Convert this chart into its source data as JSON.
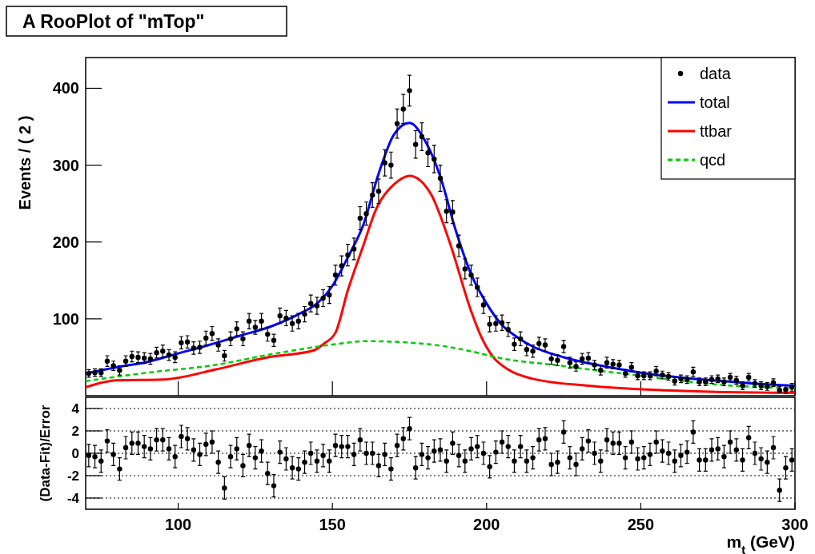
{
  "chart_data": [
    {
      "type": "scatter",
      "title": "A RooPlot of \"mTop\"",
      "ylabel": "Events / ( 2 )",
      "xlim": [
        70,
        300
      ],
      "xticks": [
        100,
        150,
        200,
        250,
        300
      ],
      "ylim": [
        0,
        440
      ],
      "yticks": [
        100,
        200,
        300,
        400
      ],
      "tick_labels": "y",
      "legend": "top right",
      "x": [
        71,
        73,
        75,
        77,
        79,
        81,
        83,
        85,
        87,
        89,
        91,
        93,
        95,
        97,
        99,
        101,
        103,
        105,
        107,
        109,
        111,
        113,
        115,
        117,
        119,
        121,
        123,
        125,
        127,
        129,
        131,
        133,
        135,
        137,
        139,
        141,
        143,
        145,
        147,
        149,
        151,
        153,
        155,
        157,
        159,
        161,
        163,
        165,
        167,
        169,
        171,
        173,
        175,
        177,
        179,
        181,
        183,
        185,
        187,
        189,
        191,
        193,
        195,
        197,
        199,
        201,
        203,
        205,
        207,
        209,
        211,
        213,
        215,
        217,
        219,
        221,
        223,
        225,
        227,
        229,
        231,
        233,
        235,
        237,
        239,
        241,
        243,
        245,
        247,
        249,
        251,
        253,
        255,
        257,
        259,
        261,
        263,
        265,
        267,
        269,
        271,
        273,
        275,
        277,
        279,
        281,
        283,
        285,
        287,
        289,
        291,
        293,
        295,
        297,
        299
      ],
      "series": [
        {
          "name": "data",
          "type": "scatter",
          "marker": "circle",
          "color": "#000000",
          "values": [
            29,
            30,
            30,
            45,
            39,
            33,
            45,
            51,
            50,
            49,
            48,
            56,
            58,
            53,
            50,
            69,
            70,
            62,
            63,
            75,
            81,
            66,
            52,
            74,
            87,
            74,
            97,
            89,
            97,
            80,
            72,
            104,
            101,
            94,
            97,
            106,
            120,
            117,
            127,
            131,
            157,
            169,
            183,
            191,
            231,
            237,
            261,
            266,
            303,
            300,
            354,
            373,
            397,
            327,
            337,
            316,
            308,
            283,
            240,
            239,
            195,
            165,
            157,
            141,
            118,
            93,
            94,
            95,
            86,
            67,
            74,
            60,
            58,
            68,
            66,
            48,
            46,
            64,
            43,
            38,
            48,
            49,
            40,
            33,
            43,
            41,
            40,
            29,
            37,
            26,
            26,
            26,
            32,
            27,
            25,
            19,
            22,
            21,
            31,
            18,
            18,
            21,
            22,
            18,
            24,
            20,
            13,
            24,
            16,
            13,
            12,
            17,
            7,
            8,
            11
          ],
          "errors": [
            5,
            5,
            5,
            7,
            6,
            6,
            7,
            7,
            7,
            7,
            7,
            7,
            8,
            7,
            7,
            8,
            8,
            8,
            8,
            9,
            9,
            8,
            7,
            9,
            9,
            9,
            10,
            9,
            10,
            9,
            8,
            10,
            10,
            10,
            10,
            10,
            11,
            11,
            11,
            11,
            13,
            13,
            14,
            14,
            15,
            15,
            16,
            16,
            17,
            17,
            19,
            19,
            20,
            18,
            18,
            18,
            18,
            17,
            15,
            15,
            14,
            13,
            13,
            12,
            11,
            10,
            10,
            10,
            9,
            8,
            9,
            8,
            8,
            8,
            8,
            7,
            7,
            8,
            7,
            6,
            7,
            7,
            6,
            6,
            7,
            6,
            6,
            5,
            6,
            5,
            5,
            5,
            6,
            5,
            5,
            5,
            5,
            5,
            6,
            5,
            5,
            5,
            5,
            5,
            5,
            5,
            5,
            5,
            5,
            5,
            5,
            5,
            [
              3,
              5
            ],
            5,
            5
          ]
        },
        {
          "name": "total",
          "type": "line",
          "marker": "none",
          "line_style": "solid",
          "color": "#0000ff",
          "x": [
            70,
            80,
            90,
            100,
            110,
            120,
            130,
            140,
            145,
            150,
            155,
            160,
            165,
            170,
            175,
            180,
            185,
            190,
            195,
            200,
            205,
            210,
            215,
            220,
            225,
            230,
            240,
            250,
            260,
            270,
            280,
            290,
            300
          ],
          "values": [
            29,
            37,
            44,
            55,
            66,
            78,
            90,
            108,
            120,
            143,
            180,
            222,
            289,
            340,
            355,
            332,
            285,
            215,
            158,
            120,
            92,
            76,
            64,
            56,
            50,
            45,
            37,
            30,
            25,
            21,
            18,
            15,
            13
          ]
        },
        {
          "name": "ttbar",
          "type": "line",
          "marker": "none",
          "line_style": "solid",
          "color": "#ff0000",
          "x": [
            70,
            80,
            95,
            112,
            129,
            144,
            147,
            151,
            155,
            160,
            164,
            170,
            175,
            182,
            188,
            195,
            198,
            202,
            207,
            215,
            233,
            258,
            293,
            300
          ],
          "values": [
            11,
            20,
            21,
            34,
            50,
            59,
            67,
            82,
            137,
            195,
            241,
            275,
            286,
            262,
            200,
            110,
            79,
            51,
            34,
            22,
            13,
            7,
            4,
            4
          ]
        },
        {
          "name": "qcd",
          "type": "line",
          "marker": "none",
          "line_style": "dashed",
          "color": "#00cc00",
          "x": [
            70,
            90,
            112,
            129,
            151,
            161,
            181,
            198,
            202,
            224,
            250,
            276,
            300
          ],
          "values": [
            19,
            30,
            40,
            53,
            67,
            71,
            67,
            55,
            51,
            39,
            26,
            14,
            10
          ]
        }
      ]
    },
    {
      "type": "scatter",
      "xlabel": "m$_{t}$ (GeV)",
      "ylabel": "(Data-Fit)/Error",
      "xlim": [
        70,
        300
      ],
      "xticks": [
        100,
        150,
        200,
        250,
        300
      ],
      "ylim": [
        -5,
        5
      ],
      "yticks": [
        -4,
        -2,
        0,
        2,
        4
      ],
      "grid": "y",
      "marker": "circle",
      "color": "#000000",
      "x": [
        71,
        73,
        75,
        77,
        79,
        81,
        83,
        85,
        87,
        89,
        91,
        93,
        95,
        97,
        99,
        101,
        103,
        105,
        107,
        109,
        111,
        113,
        115,
        117,
        119,
        121,
        123,
        125,
        127,
        129,
        131,
        133,
        135,
        137,
        139,
        141,
        143,
        145,
        147,
        149,
        151,
        153,
        155,
        157,
        159,
        161,
        163,
        165,
        167,
        169,
        171,
        173,
        175,
        177,
        179,
        181,
        183,
        185,
        187,
        189,
        191,
        193,
        195,
        197,
        199,
        201,
        203,
        205,
        207,
        209,
        211,
        213,
        215,
        217,
        219,
        221,
        223,
        225,
        227,
        229,
        231,
        233,
        235,
        237,
        239,
        241,
        243,
        245,
        247,
        249,
        251,
        253,
        255,
        257,
        259,
        261,
        263,
        265,
        267,
        269,
        271,
        273,
        275,
        277,
        279,
        281,
        283,
        285,
        287,
        289,
        291,
        293,
        295,
        297,
        299
      ],
      "values": [
        -0.2,
        -0.3,
        -0.7,
        1.1,
        -0.1,
        -1.4,
        0.5,
        0.9,
        0.9,
        0.6,
        0.4,
        1.2,
        1.2,
        0.4,
        -0.3,
        1.5,
        1.3,
        0.3,
        -0.1,
        0.8,
        1.0,
        -0.8,
        -3.1,
        -0.3,
        0.4,
        -1.1,
        0.7,
        -0.4,
        0.2,
        -1.8,
        -2.9,
        0.1,
        -0.5,
        -1.3,
        -1.4,
        -0.8,
        0.0,
        -0.7,
        -0.2,
        -0.7,
        0.7,
        0.6,
        0.6,
        -0.1,
        1.2,
        0.0,
        0.0,
        -1.1,
        -0.1,
        -1.4,
        0.7,
        1.3,
        2.2,
        -1.3,
        -0.1,
        -0.4,
        0.2,
        0.3,
        -0.7,
        0.9,
        -0.2,
        -0.7,
        0.4,
        0.6,
        0.0,
        -1.2,
        0.1,
        1.0,
        0.6,
        -0.7,
        0.6,
        -0.7,
        -0.4,
        1.2,
        1.3,
        -1.0,
        -0.8,
        1.9,
        -0.4,
        -1.0,
        0.4,
        1.1,
        0.0,
        -0.7,
        1.2,
        0.9,
        0.9,
        -0.4,
        1.0,
        -0.5,
        -0.4,
        -0.1,
        1.0,
        0.2,
        0.0,
        -0.7,
        -0.2,
        0.1,
        1.9,
        -0.6,
        -0.6,
        0.3,
        0.4,
        -0.3,
        1.0,
        0.3,
        -0.6,
        1.4,
        0.0,
        -0.5,
        -0.8,
        0.5,
        -3.3,
        -1.3,
        -0.6
      ],
      "errors": [
        1,
        1,
        1,
        1,
        1,
        1,
        1,
        1,
        1,
        1,
        1,
        1,
        1,
        1,
        1,
        1,
        1,
        1,
        1,
        1,
        1,
        1,
        1,
        1,
        1,
        1,
        1,
        1,
        1,
        1,
        1,
        1,
        1,
        1,
        1,
        1,
        1,
        1,
        1,
        1,
        1,
        1,
        1,
        1,
        1,
        1,
        1,
        1,
        1,
        1,
        1,
        1,
        1,
        1,
        1,
        1,
        1,
        1,
        1,
        1,
        1,
        1,
        1,
        1,
        1,
        1,
        1,
        1,
        1,
        1,
        1,
        1,
        1,
        1,
        1,
        1,
        1,
        1,
        1,
        1,
        1,
        1,
        1,
        1,
        1,
        1,
        1,
        1,
        1,
        1,
        1,
        1,
        1,
        1,
        1,
        1,
        1,
        1,
        1,
        1,
        1,
        1,
        1,
        1,
        1,
        1,
        1,
        1,
        1,
        1,
        1,
        1,
        1,
        1,
        1
      ]
    }
  ]
}
